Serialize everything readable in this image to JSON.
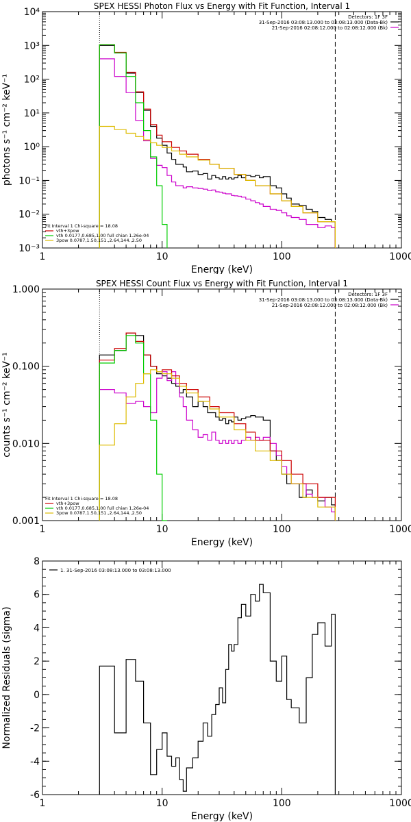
{
  "chart_data": [
    {
      "type": "line",
      "title": "SPEX HESSI Photon Flux vs Energy with Fit Function, Interval 1",
      "xlabel": "Energy (keV)",
      "ylabel": "photons s⁻¹ cm⁻² keV⁻¹",
      "xscale": "log",
      "yscale": "log",
      "xlim": [
        1,
        1000
      ],
      "ylim": [
        0.001,
        10000
      ],
      "xticks": [
        1,
        10,
        100,
        1000
      ],
      "xtick_labels": [
        "1",
        "10",
        "100",
        "1000"
      ],
      "yticks": [
        0.001,
        0.01,
        0.1,
        1,
        10,
        100,
        1000,
        10000
      ],
      "ytick_labels": [
        "10⁻³",
        "10⁻²",
        "10⁻¹",
        "10⁰",
        "10¹",
        "10²",
        "10³",
        "10⁴"
      ],
      "vlines": [
        {
          "x": 3,
          "style": "dotted"
        },
        {
          "x": 280,
          "style": "dashed"
        }
      ],
      "header_lines": [
        "Detectors: 1F 3F",
        "31-Sep-2016 03:08:13.000 to 03:08:13.000 (Data-Bk)",
        "21-Sep-2016 02:08:12.000 to 02:08:12.000 (Bk)"
      ],
      "header_colors": [
        "#000000",
        "#000000",
        "#cc00cc"
      ],
      "fit_legend": [
        {
          "label": "Fit Interval 1   Chi-square = 18.08",
          "color": ""
        },
        {
          "label": "vth+3pow",
          "color": "#cc0000"
        },
        {
          "label": "vth 0.0177,0.685,1.00   full chian 1.26e-04",
          "color": "#00cc00"
        },
        {
          "label": "3pow 0.0787,1.50,151.,2.64,144.,2.50",
          "color": "#ddbb00"
        }
      ],
      "series": [
        {
          "color": "#000000",
          "step": true,
          "x": [
            3,
            4,
            5,
            6,
            7,
            8,
            9,
            10,
            11,
            12,
            13,
            15,
            16,
            18,
            20,
            22,
            24,
            26,
            28,
            30,
            32,
            34,
            36,
            38,
            40,
            43,
            46,
            50,
            55,
            60,
            65,
            70,
            80,
            90,
            100,
            110,
            120,
            140,
            160,
            180,
            200,
            230,
            260,
            280
          ],
          "y": [
            1000,
            600,
            150,
            40,
            12,
            4,
            1.8,
            1.1,
            0.65,
            0.42,
            0.3,
            0.25,
            0.18,
            0.19,
            0.15,
            0.16,
            0.11,
            0.14,
            0.12,
            0.11,
            0.13,
            0.11,
            0.12,
            0.11,
            0.12,
            0.14,
            0.12,
            0.14,
            0.13,
            0.14,
            0.12,
            0.13,
            0.07,
            0.06,
            0.04,
            0.03,
            0.02,
            0.018,
            0.014,
            0.012,
            0.008,
            0.007,
            0.006,
            0.001
          ]
        },
        {
          "color": "#cc00cc",
          "step": true,
          "x": [
            3,
            4,
            5,
            6,
            7,
            8,
            9,
            10,
            11,
            12,
            13,
            15,
            16,
            18,
            20,
            22,
            24,
            26,
            28,
            30,
            32,
            34,
            36,
            38,
            40,
            43,
            46,
            50,
            55,
            60,
            65,
            70,
            80,
            90,
            100,
            110,
            120,
            140,
            160,
            180,
            200,
            230,
            260,
            280
          ],
          "y": [
            400,
            120,
            40,
            6,
            1.5,
            0.45,
            0.28,
            0.24,
            0.14,
            0.09,
            0.07,
            0.06,
            0.065,
            0.06,
            0.058,
            0.055,
            0.05,
            0.052,
            0.046,
            0.045,
            0.042,
            0.04,
            0.04,
            0.036,
            0.035,
            0.034,
            0.032,
            0.028,
            0.025,
            0.022,
            0.02,
            0.017,
            0.014,
            0.013,
            0.011,
            0.009,
            0.008,
            0.007,
            0.005,
            0.005,
            0.004,
            0.0045,
            0.004,
            0.001
          ]
        },
        {
          "color": "#cc0000",
          "step": true,
          "x": [
            3,
            4,
            5,
            6,
            7,
            8,
            9,
            10,
            12,
            14,
            16,
            20,
            25,
            30,
            40,
            50,
            60,
            80,
            100,
            120,
            150,
            200,
            280
          ],
          "y": [
            1050,
            620,
            160,
            42,
            13,
            4.5,
            2.2,
            1.4,
            0.95,
            0.75,
            0.6,
            0.42,
            0.3,
            0.23,
            0.15,
            0.1,
            0.07,
            0.04,
            0.025,
            0.017,
            0.011,
            0.006,
            0.001
          ]
        },
        {
          "color": "#00cc00",
          "step": true,
          "x": [
            3,
            4,
            5,
            6,
            7,
            8,
            9,
            10,
            11
          ],
          "y": [
            1050,
            600,
            120,
            20,
            3,
            0.5,
            0.07,
            0.005,
            0.001
          ]
        },
        {
          "color": "#ddbb00",
          "step": true,
          "x": [
            3,
            4,
            5,
            6,
            7,
            8,
            9,
            10,
            12,
            14,
            16,
            20,
            25,
            30,
            40,
            50,
            60,
            80,
            100,
            120,
            150,
            200,
            280
          ],
          "y": [
            4,
            3.2,
            2.5,
            2,
            1.6,
            1.3,
            1.1,
            0.95,
            0.75,
            0.6,
            0.5,
            0.4,
            0.3,
            0.23,
            0.15,
            0.1,
            0.07,
            0.04,
            0.025,
            0.017,
            0.011,
            0.006,
            0.001
          ]
        }
      ]
    },
    {
      "type": "line",
      "title": "SPEX HESSI Count Flux vs Energy with Fit Function, Interval 1",
      "xlabel": "Energy (keV)",
      "ylabel": "counts s⁻¹ cm⁻² keV⁻¹",
      "xscale": "log",
      "yscale": "log",
      "xlim": [
        1,
        1000
      ],
      "ylim": [
        0.001,
        1
      ],
      "xticks": [
        1,
        10,
        100,
        1000
      ],
      "xtick_labels": [
        "1",
        "10",
        "100",
        "1000"
      ],
      "yticks": [
        0.001,
        0.01,
        0.1,
        1
      ],
      "ytick_labels": [
        "0.001",
        "0.010",
        "0.100",
        "1.000"
      ],
      "vlines": [
        {
          "x": 3,
          "style": "dotted"
        },
        {
          "x": 280,
          "style": "dashed"
        }
      ],
      "header_lines": [
        "Detectors: 1F 3F",
        "31-Sep-2016 03:08:13.000 to 03:08:13.000 (Data-Bk)",
        "21-Sep-2016 02:08:12.000 to 02:08:12.000 (Bk)"
      ],
      "header_colors": [
        "#000000",
        "#000000",
        "#cc00cc"
      ],
      "fit_legend": [
        {
          "label": "Fit Interval 1   Chi-square = 18.08",
          "color": ""
        },
        {
          "label": "vth+3pow",
          "color": "#cc0000"
        },
        {
          "label": "vth 0.0177,0.685,1.00   full chian 1.26e-04",
          "color": "#00cc00"
        },
        {
          "label": "3pow 0.0787,1.50,151.,2.64,144.,2.50",
          "color": "#ddbb00"
        }
      ],
      "series": [
        {
          "color": "#000000",
          "step": true,
          "x": [
            3,
            4,
            5,
            6,
            7,
            8,
            9,
            10,
            11,
            12,
            13,
            14,
            15,
            16,
            18,
            20,
            22,
            24,
            26,
            28,
            30,
            32,
            34,
            36,
            38,
            40,
            43,
            46,
            50,
            55,
            60,
            65,
            70,
            80,
            90,
            100,
            110,
            120,
            140,
            160,
            180,
            200,
            230,
            260,
            280
          ],
          "y": [
            0.14,
            0.16,
            0.27,
            0.25,
            0.14,
            0.1,
            0.08,
            0.075,
            0.07,
            0.06,
            0.055,
            0.045,
            0.05,
            0.04,
            0.03,
            0.035,
            0.03,
            0.025,
            0.025,
            0.022,
            0.02,
            0.021,
            0.018,
            0.02,
            0.019,
            0.022,
            0.02,
            0.021,
            0.022,
            0.023,
            0.022,
            0.022,
            0.02,
            0.008,
            0.006,
            0.004,
            0.003,
            0.003,
            0.002,
            0.0025,
            0.002,
            0.0018,
            0.002,
            0.0016,
            0.001
          ]
        },
        {
          "color": "#cc00cc",
          "step": true,
          "x": [
            3,
            4,
            5,
            6,
            7,
            8,
            9,
            10,
            11,
            12,
            13,
            14,
            15,
            16,
            18,
            20,
            22,
            24,
            26,
            28,
            30,
            32,
            34,
            36,
            38,
            40,
            43,
            46,
            50,
            55,
            60,
            65,
            70,
            80,
            90,
            100,
            110,
            120,
            140,
            160,
            180,
            200,
            230,
            260,
            280
          ],
          "y": [
            0.05,
            0.045,
            0.033,
            0.035,
            0.03,
            0.025,
            0.07,
            0.085,
            0.065,
            0.085,
            0.06,
            0.04,
            0.03,
            0.02,
            0.015,
            0.012,
            0.013,
            0.011,
            0.014,
            0.011,
            0.01,
            0.011,
            0.01,
            0.011,
            0.01,
            0.011,
            0.01,
            0.011,
            0.012,
            0.011,
            0.012,
            0.011,
            0.012,
            0.01,
            0.007,
            0.005,
            0.004,
            0.003,
            0.003,
            0.0022,
            0.002,
            0.002,
            0.0015,
            0.0013,
            0.001
          ]
        },
        {
          "color": "#cc0000",
          "step": true,
          "x": [
            3,
            4,
            5,
            6,
            7,
            8,
            9,
            10,
            12,
            14,
            16,
            20,
            25,
            30,
            40,
            50,
            60,
            80,
            100,
            120,
            150,
            200,
            280
          ],
          "y": [
            0.12,
            0.17,
            0.27,
            0.21,
            0.14,
            0.1,
            0.085,
            0.09,
            0.075,
            0.06,
            0.05,
            0.04,
            0.03,
            0.025,
            0.018,
            0.014,
            0.011,
            0.008,
            0.006,
            0.004,
            0.003,
            0.002,
            0.001
          ]
        },
        {
          "color": "#00cc00",
          "step": true,
          "x": [
            3,
            4,
            5,
            6,
            7,
            8,
            9,
            10,
            11
          ],
          "y": [
            0.11,
            0.16,
            0.25,
            0.2,
            0.08,
            0.02,
            0.004,
            0.001,
            0.001
          ]
        },
        {
          "color": "#ddbb00",
          "step": true,
          "x": [
            3,
            4,
            5,
            6,
            7,
            8,
            9,
            10,
            12,
            14,
            16,
            20,
            25,
            30,
            40,
            50,
            60,
            80,
            100,
            120,
            150,
            200,
            280
          ],
          "y": [
            0.0095,
            0.018,
            0.04,
            0.06,
            0.08,
            0.09,
            0.085,
            0.08,
            0.07,
            0.055,
            0.045,
            0.035,
            0.028,
            0.022,
            0.015,
            0.011,
            0.008,
            0.006,
            0.004,
            0.003,
            0.002,
            0.0015,
            0.001
          ]
        }
      ]
    },
    {
      "type": "line",
      "title": "",
      "xlabel": "Energy (keV)",
      "ylabel": "Normalized Residuals (sigma)",
      "xscale": "log",
      "yscale": "linear",
      "xlim": [
        1,
        1000
      ],
      "ylim": [
        -6,
        8
      ],
      "xticks": [
        1,
        10,
        100,
        1000
      ],
      "xtick_labels": [
        "1",
        "10",
        "100",
        "1000"
      ],
      "yticks": [
        -6,
        -4,
        -2,
        0,
        2,
        4,
        6,
        8
      ],
      "ytick_labels": [
        "-6",
        "-4",
        "-2",
        "0",
        "2",
        "4",
        "6",
        "8"
      ],
      "legend": "1. 31-Sep-2016 03:08:13.000 to 03:08:13.000",
      "series": [
        {
          "color": "#000000",
          "step": true,
          "x": [
            3,
            4,
            5,
            6,
            7,
            8,
            9,
            10,
            11,
            12,
            13,
            14,
            15,
            16,
            18,
            20,
            22,
            24,
            26,
            28,
            30,
            32,
            34,
            36,
            38,
            40,
            43,
            46,
            50,
            55,
            60,
            65,
            70,
            80,
            90,
            100,
            110,
            120,
            140,
            160,
            180,
            200,
            230,
            260,
            280
          ],
          "y": [
            1.7,
            -2.3,
            2.1,
            0.8,
            -1.7,
            -4.8,
            -3.3,
            -2.3,
            -3.7,
            -4.3,
            -3.8,
            -5.1,
            -5.8,
            -4.4,
            -3.8,
            -2.8,
            -1.7,
            -2.5,
            -1.2,
            -0.6,
            0.4,
            -0.5,
            1.5,
            3,
            2.6,
            3,
            4.6,
            5.4,
            4.7,
            6,
            5.6,
            6.6,
            6.1,
            2,
            0.8,
            2.3,
            -0.3,
            -0.8,
            -1.7,
            1,
            3.6,
            4.3,
            2.9,
            4.8,
            -6
          ]
        }
      ]
    }
  ]
}
